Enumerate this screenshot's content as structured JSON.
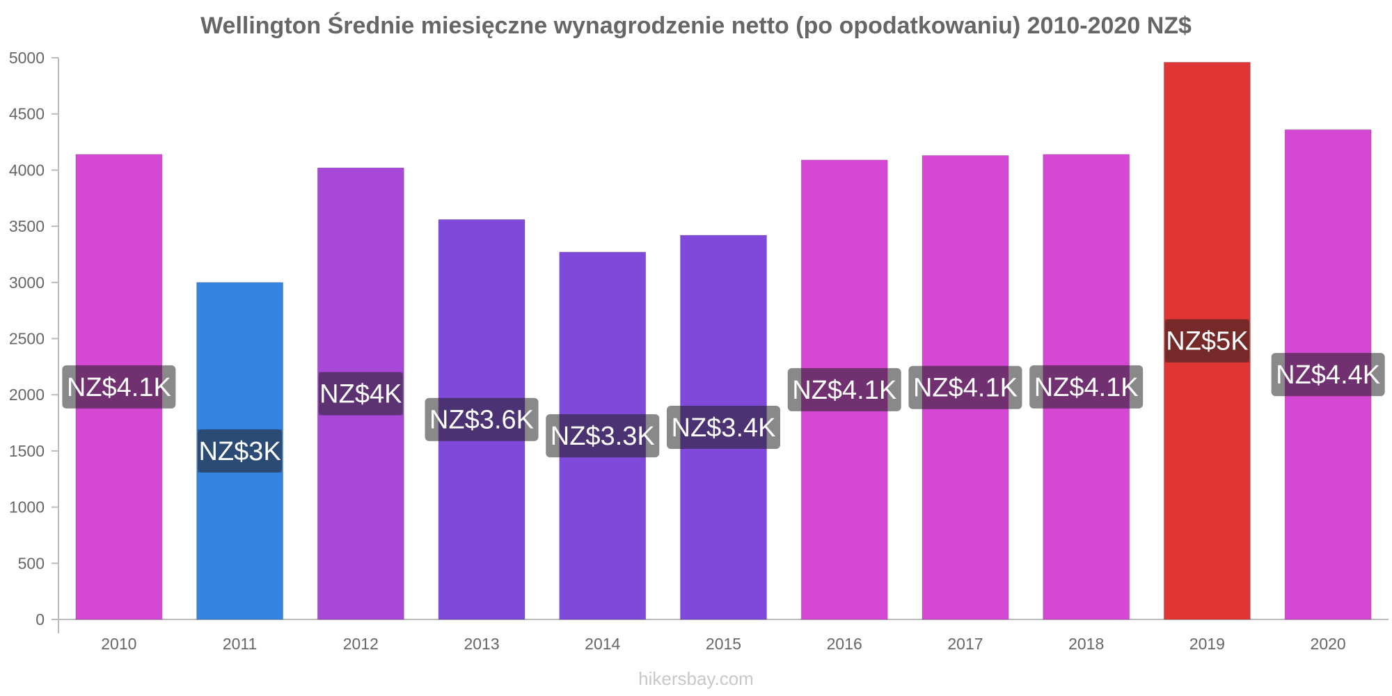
{
  "chart_data": {
    "type": "bar",
    "title": "Wellington Średnie miesięczne wynagrodzenie netto (po opodatkowaniu) 2010-2020 NZ$",
    "xlabel": "",
    "ylabel": "",
    "ylim": [
      0,
      5000
    ],
    "yticks": [
      "0",
      "500",
      "1000",
      "1500",
      "2000",
      "2500",
      "3000",
      "3500",
      "4000",
      "4500",
      "5000"
    ],
    "categories": [
      "2010",
      "2011",
      "2012",
      "2013",
      "2014",
      "2015",
      "2016",
      "2017",
      "2018",
      "2019",
      "2020"
    ],
    "values": [
      4140,
      3000,
      4020,
      3560,
      3270,
      3420,
      4090,
      4130,
      4140,
      4960,
      4360
    ],
    "labels": [
      "NZ$4.1K",
      "NZ$3K",
      "NZ$4K",
      "NZ$3.6K",
      "NZ$3.3K",
      "NZ$3.4K",
      "NZ$4.1K",
      "NZ$4.1K",
      "NZ$4.1K",
      "NZ$5K",
      "NZ$4.4K"
    ],
    "colors": [
      "#d548d3",
      "#3584e0",
      "#a848d8",
      "#7f4ada",
      "#7f4ada",
      "#7f4ada",
      "#d548d3",
      "#d548d3",
      "#d548d3",
      "#e03535",
      "#d548d3"
    ],
    "label_colors": [
      "#6b236c",
      "#1e3f6e",
      "#54256e",
      "#40256e",
      "#40256e",
      "#40256e",
      "#6b236c",
      "#6b236c",
      "#6b236c",
      "#701a1a",
      "#6b236c"
    ],
    "grid": false,
    "legend": "none"
  },
  "watermark": "hikersbay.com"
}
